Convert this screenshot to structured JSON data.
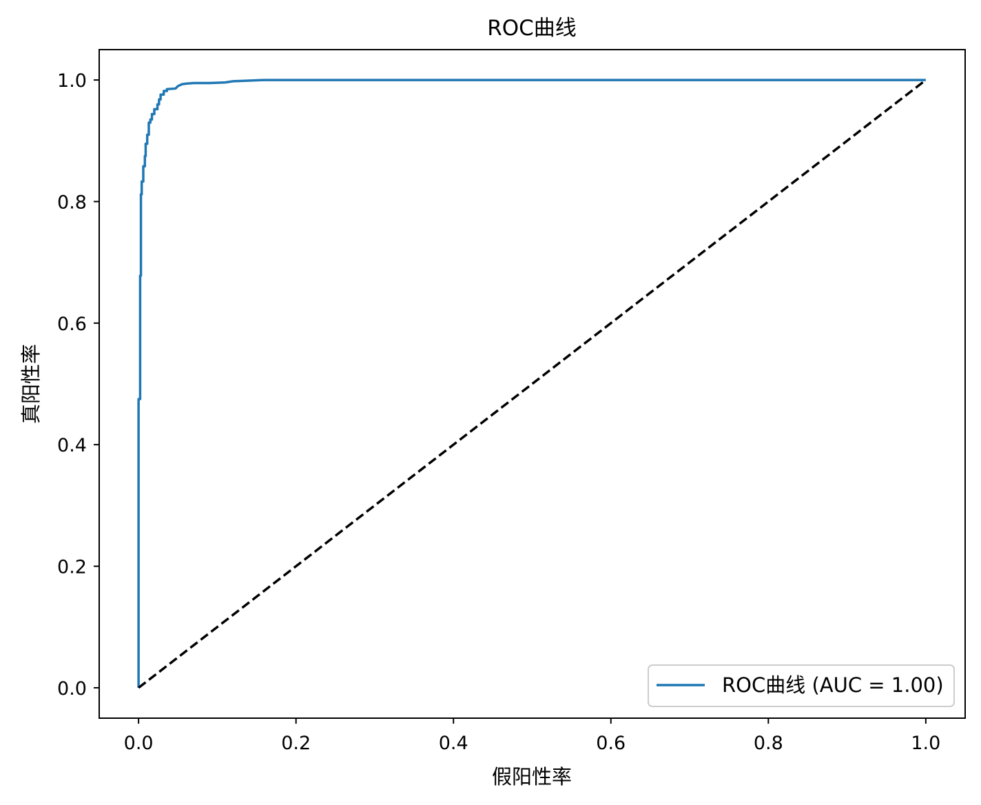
{
  "chart_data": {
    "type": "line",
    "title": "ROC曲线",
    "xlabel": "假阳性率",
    "ylabel": "真阳性率",
    "xlim": [
      -0.05,
      1.05
    ],
    "ylim": [
      -0.05,
      1.05
    ],
    "xticks": [
      0.0,
      0.2,
      0.4,
      0.6,
      0.8,
      1.0
    ],
    "xtick_labels": [
      "0.0",
      "0.2",
      "0.4",
      "0.6",
      "0.8",
      "1.0"
    ],
    "yticks": [
      0.0,
      0.2,
      0.4,
      0.6,
      0.8,
      1.0
    ],
    "ytick_labels": [
      "0.0",
      "0.2",
      "0.4",
      "0.6",
      "0.8",
      "1.0"
    ],
    "grid": false,
    "legend": "lower-right",
    "series": [
      {
        "name": "ROC曲线 (AUC = 1.00)",
        "color": "#1f77b4",
        "style": "solid",
        "x": [
          0.0,
          0.0,
          0.002,
          0.002,
          0.003,
          0.003,
          0.004,
          0.004,
          0.006,
          0.006,
          0.008,
          0.008,
          0.009,
          0.009,
          0.011,
          0.011,
          0.013,
          0.013,
          0.015,
          0.015,
          0.017,
          0.017,
          0.02,
          0.02,
          0.024,
          0.024,
          0.026,
          0.026,
          0.028,
          0.028,
          0.032,
          0.032,
          0.036,
          0.036,
          0.047,
          0.05,
          0.055,
          0.06,
          0.07,
          0.09,
          0.11,
          0.12,
          0.14,
          0.16,
          0.28,
          1.0
        ],
        "y": [
          0.0,
          0.475,
          0.475,
          0.678,
          0.678,
          0.812,
          0.812,
          0.833,
          0.833,
          0.858,
          0.858,
          0.875,
          0.875,
          0.895,
          0.895,
          0.91,
          0.91,
          0.93,
          0.93,
          0.935,
          0.935,
          0.944,
          0.944,
          0.952,
          0.952,
          0.96,
          0.96,
          0.968,
          0.968,
          0.976,
          0.976,
          0.982,
          0.982,
          0.985,
          0.986,
          0.99,
          0.993,
          0.994,
          0.995,
          0.995,
          0.996,
          0.998,
          0.999,
          1.0,
          1.0,
          1.0
        ]
      },
      {
        "color": "#000000",
        "style": "dashed",
        "x": [
          0.0,
          1.0
        ],
        "y": [
          0.0,
          1.0
        ]
      }
    ]
  }
}
